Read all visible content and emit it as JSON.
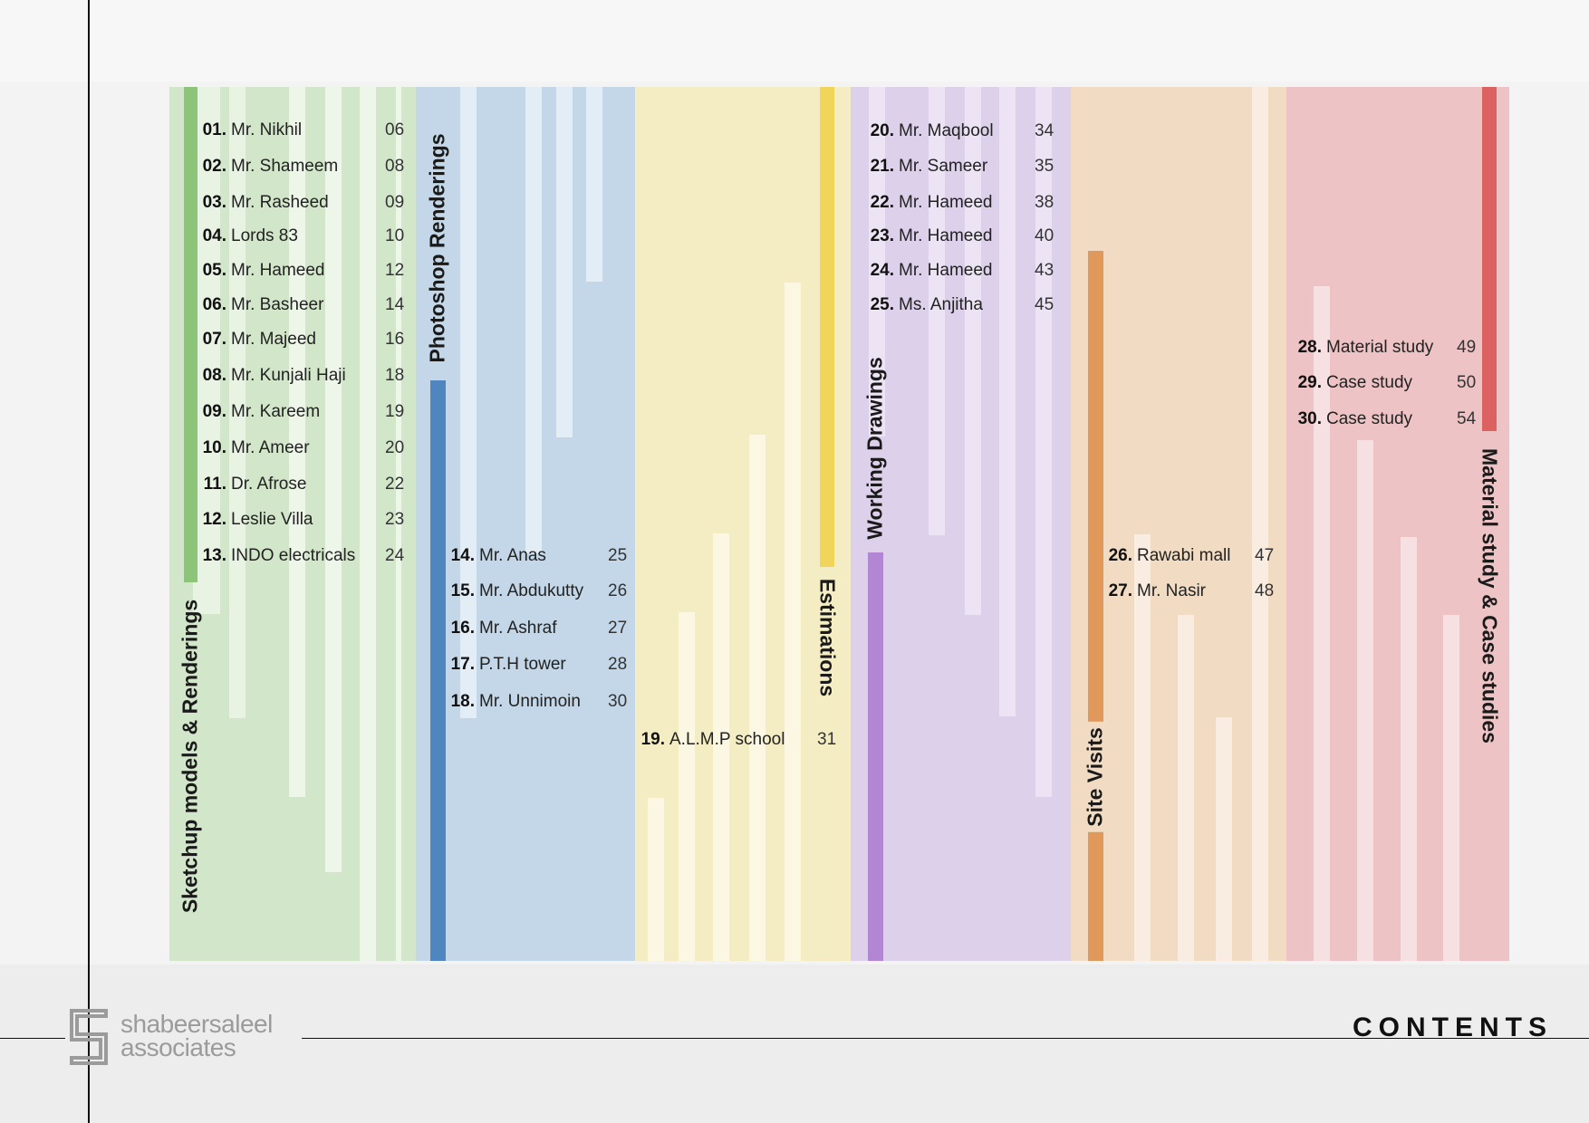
{
  "footer": {
    "brand_line1": "shabeersaleel",
    "brand_line2": "associates",
    "title": "CONTENTS"
  },
  "sections": [
    {
      "label": "Sketchup models & Renderings",
      "color": "#d2e6c9",
      "accent": "#8cc47a",
      "entries": [
        {
          "num": "01.",
          "name": "Mr. Nikhil",
          "page": "06"
        },
        {
          "num": "02.",
          "name": "Mr. Shameem",
          "page": "08"
        },
        {
          "num": "03.",
          "name": "Mr. Rasheed",
          "page": "09"
        },
        {
          "num": "04.",
          "name": "Lords 83",
          "page": "10"
        },
        {
          "num": "05.",
          "name": "Mr. Hameed",
          "page": "12"
        },
        {
          "num": "06.",
          "name": "Mr. Basheer",
          "page": "14"
        },
        {
          "num": "07.",
          "name": "Mr. Majeed",
          "page": "16"
        },
        {
          "num": "08.",
          "name": "Mr. Kunjali Haji",
          "page": "18"
        },
        {
          "num": "09.",
          "name": "Mr. Kareem",
          "page": "19"
        },
        {
          "num": "10.",
          "name": "Mr. Ameer",
          "page": "20"
        },
        {
          "num": "11.",
          "name": "Dr. Afrose",
          "page": "22"
        },
        {
          "num": "12.",
          "name": "Leslie Villa",
          "page": "23"
        },
        {
          "num": "13.",
          "name": "INDO electricals",
          "page": "24"
        }
      ]
    },
    {
      "label": "Photoshop Renderings",
      "color": "#c3d7e8",
      "accent": "#4f86bf",
      "entries": [
        {
          "num": "14.",
          "name": "Mr. Anas",
          "page": "25"
        },
        {
          "num": "15.",
          "name": "Mr. Abdukutty",
          "page": "26"
        },
        {
          "num": "16.",
          "name": "Mr. Ashraf",
          "page": "27"
        },
        {
          "num": "17.",
          "name": "P.T.H tower",
          "page": "28"
        },
        {
          "num": "18.",
          "name": "Mr. Unnimoin",
          "page": "30"
        }
      ]
    },
    {
      "label": "Estimations",
      "color": "#f4edc4",
      "accent": "#f0d55a",
      "entries": [
        {
          "num": "19.",
          "name": "A.L.M.P school",
          "page": "31"
        }
      ]
    },
    {
      "label": "Working Drawings",
      "color": "#ddd0ea",
      "accent": "#b286d2",
      "entries": [
        {
          "num": "20.",
          "name": "Mr. Maqbool",
          "page": "34"
        },
        {
          "num": "21.",
          "name": "Mr. Sameer",
          "page": "35"
        },
        {
          "num": "22.",
          "name": "Mr. Hameed",
          "page": "38"
        },
        {
          "num": "23.",
          "name": "Mr. Hameed",
          "page": "40"
        },
        {
          "num": "24.",
          "name": "Mr. Hameed",
          "page": "43"
        },
        {
          "num": "25.",
          "name": "Ms. Anjitha",
          "page": "45"
        }
      ]
    },
    {
      "label": "Site Visits",
      "color": "#f1dcc3",
      "accent": "#e0995a",
      "entries": [
        {
          "num": "26.",
          "name": "Rawabi mall",
          "page": "47"
        },
        {
          "num": "27.",
          "name": "Mr. Nasir",
          "page": "48"
        }
      ]
    },
    {
      "label": "Material study & Case studies",
      "color": "#edc3c5",
      "accent": "#dc6262",
      "entries": [
        {
          "num": "28.",
          "name": "Material study",
          "page": "49"
        },
        {
          "num": "29.",
          "name": "Case study",
          "page": "50"
        },
        {
          "num": "30.",
          "name": "Case study",
          "page": "54"
        }
      ]
    }
  ]
}
